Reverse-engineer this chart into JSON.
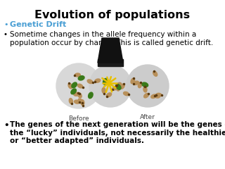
{
  "title": "Evolution of populations",
  "title_fontsize": 11.5,
  "title_fontweight": "bold",
  "title_color": "#000000",
  "background_color": "#ffffff",
  "bullet1_text": "Genetic Drift",
  "bullet1_color": "#4a9fd4",
  "bullet1_fontsize": 8,
  "bullet2_text": "Sometime changes in the allele frequency within a\npopulation occur by chance. This is called genetic drift.",
  "bullet2_color": "#000000",
  "bullet2_fontsize": 7.5,
  "bullet3_text": "The genes of the next generation will be the genes of\nthe “lucky” individuals, not necessarily the healthier\nor “better adapted” individuals.",
  "bullet3_color": "#000000",
  "bullet3_fontsize": 7.5,
  "label_before": "Before",
  "label_after": "After",
  "label_fontsize": 6.5
}
